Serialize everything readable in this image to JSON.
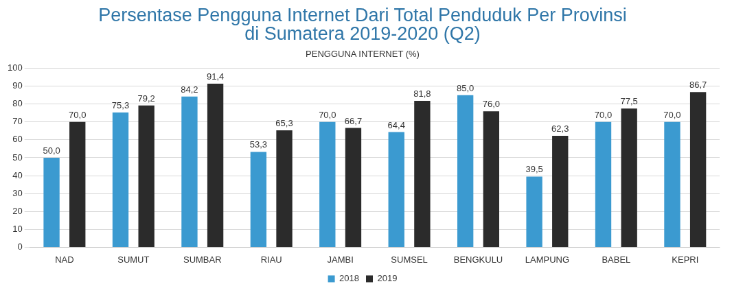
{
  "chart_data": {
    "type": "bar",
    "title": "Persentase Pengguna Internet Dari Total Penduduk Per Provinsi\ndi Sumatera 2019-2020 (Q2)",
    "subtitle": "PENGGUNA INTERNET (%)",
    "categories": [
      "NAD",
      "SUMUT",
      "SUMBAR",
      "RIAU",
      "JAMBI",
      "SUMSEL",
      "BENGKULU",
      "LAMPUNG",
      "BABEL",
      "KEPRI"
    ],
    "series": [
      {
        "name": "2018",
        "color": "#3b9ad0",
        "values": [
          50.0,
          75.3,
          84.2,
          53.3,
          70.0,
          64.4,
          85.0,
          39.5,
          70.0,
          70.0
        ],
        "value_labels": [
          "50,0",
          "75,3",
          "84,2",
          "53,3",
          "70,0",
          "64,4",
          "85,0",
          "39,5",
          "70,0",
          "70,0"
        ]
      },
      {
        "name": "2019",
        "color": "#2b2b2b",
        "values": [
          70.0,
          79.2,
          91.4,
          65.3,
          66.7,
          81.8,
          76.0,
          62.3,
          77.5,
          86.7
        ],
        "value_labels": [
          "70,0",
          "79,2",
          "91,4",
          "65,3",
          "66,7",
          "81,8",
          "76,0",
          "62,3",
          "77,5",
          "86,7"
        ]
      }
    ],
    "ylim": [
      0,
      100
    ],
    "yticks": [
      0,
      10,
      20,
      30,
      40,
      50,
      60,
      70,
      80,
      90,
      100
    ],
    "grid": "y",
    "legend": "bottom"
  }
}
